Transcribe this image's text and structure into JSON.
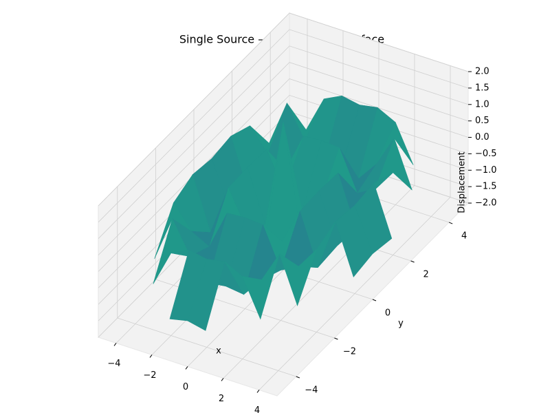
{
  "chart_data": {
    "type": "surface",
    "title": "Single Source – 3D Animated Surface",
    "xlabel": "x",
    "ylabel": "y",
    "zlabel": "Displacement",
    "colormap": "viridis",
    "x": [
      -5,
      -4,
      -3,
      -2,
      -1,
      0,
      1,
      2,
      3,
      4,
      5
    ],
    "y": [
      -5,
      -4,
      -3,
      -2,
      -1,
      0,
      1,
      2,
      3,
      4,
      5
    ],
    "z": [
      [
        null,
        null,
        null,
        null,
        -0.73,
        -0.61,
        -0.73,
        null,
        null,
        null,
        null
      ],
      [
        null,
        null,
        -0.61,
        0.51,
        0.78,
        0.68,
        0.78,
        0.51,
        -0.61,
        null,
        null
      ],
      [
        null,
        -0.61,
        0.79,
        -0.18,
        -0.8,
        -0.73,
        -0.8,
        -0.18,
        0.79,
        -0.61,
        null
      ],
      [
        null,
        0.51,
        -0.18,
        -0.47,
        0.73,
        0.77,
        0.73,
        -0.47,
        -0.18,
        0.51,
        null
      ],
      [
        -0.73,
        0.78,
        -0.8,
        0.73,
        -0.36,
        -0.8,
        -0.36,
        0.73,
        -0.8,
        0.78,
        -0.73
      ],
      [
        -0.61,
        0.68,
        -0.73,
        0.77,
        -0.8,
        2.5,
        -0.8,
        0.77,
        -0.73,
        0.68,
        -0.61
      ],
      [
        -0.73,
        0.78,
        -0.8,
        0.73,
        -0.36,
        -0.8,
        -0.36,
        0.73,
        -0.8,
        0.78,
        -0.73
      ],
      [
        null,
        0.51,
        -0.18,
        -0.47,
        0.73,
        0.77,
        0.73,
        -0.47,
        -0.18,
        0.51,
        null
      ],
      [
        null,
        -0.61,
        0.79,
        -0.18,
        -0.8,
        -0.73,
        -0.8,
        -0.18,
        0.79,
        -0.61,
        null
      ],
      [
        null,
        null,
        -0.61,
        0.51,
        0.78,
        0.68,
        0.78,
        0.51,
        -0.61,
        null,
        null
      ],
      [
        null,
        null,
        null,
        null,
        -0.73,
        -0.61,
        -0.73,
        null,
        null,
        null,
        null
      ]
    ],
    "xlim": [
      -5,
      5
    ],
    "ylim": [
      -5,
      5
    ],
    "zlim": [
      -2,
      2
    ],
    "xticks": [
      {
        "value": -4,
        "label": "−4"
      },
      {
        "value": -2,
        "label": "−2"
      },
      0,
      2,
      4
    ],
    "yticks": [
      {
        "value": -4,
        "label": "−4"
      },
      {
        "value": -2,
        "label": "−2"
      },
      0,
      2,
      4
    ],
    "zticks": [
      {
        "value": -2,
        "label": "−2.0"
      },
      {
        "value": -1.5,
        "label": "−1.5"
      },
      {
        "value": -1,
        "label": "−1.0"
      },
      {
        "value": -0.5,
        "label": "−0.5"
      },
      {
        "value": 0,
        "label": "0.0"
      },
      {
        "value": 0.5,
        "label": "0.5"
      },
      {
        "value": 1,
        "label": "1.0"
      },
      {
        "value": 1.5,
        "label": "1.5"
      },
      {
        "value": 2,
        "label": "2.0"
      }
    ],
    "grid": true
  }
}
